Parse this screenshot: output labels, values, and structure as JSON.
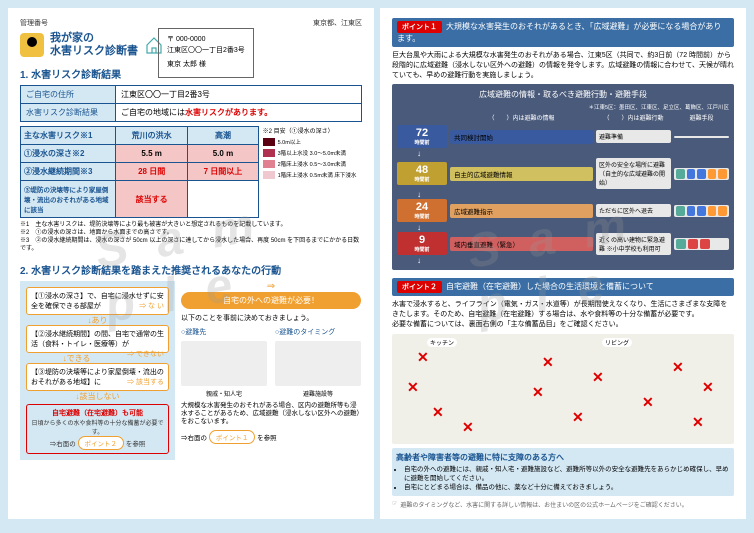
{
  "header": {
    "left": "管理番号",
    "right": "東京都、江東区"
  },
  "title": {
    "line1": "我が家の",
    "line2": "水害リスク診断書"
  },
  "address_box": {
    "zip": "〒 000-0000",
    "addr": "江東区〇〇一丁目2番3号",
    "name": "東京 太郎 様"
  },
  "sec1": {
    "title": "1. 水害リスク診断結果",
    "rows": [
      {
        "label": "ご自宅の住所",
        "value": "江東区〇〇一丁目2番3号"
      },
      {
        "label": "水害リスク診断結果",
        "prefix": "ご自宅の地域には",
        "risk": "水害リスクがあります。"
      }
    ],
    "risk_table": {
      "main_label": "主な水害リスク※1",
      "cols": [
        "荒川の洪水",
        "高潮"
      ],
      "rows": [
        {
          "label": "①浸水の深さ※2",
          "vals": [
            "5.5 m",
            "5.0 m"
          ],
          "pink": true
        },
        {
          "label": "②浸水継続期間※3",
          "vals": [
            "28 日間",
            "7 日間以上"
          ],
          "pink": true,
          "red": true
        },
        {
          "label": "③堤防の決壊等により家屋倒壊・流出のおそれがある地域に該当",
          "vals": [
            "該当する",
            ""
          ],
          "pink": true,
          "red": true,
          "span": true
        }
      ],
      "depth_legend": {
        "title": "※2 目安（①浸水の深さ）",
        "items": [
          {
            "c": "#5a0010",
            "t": "5.0m以上"
          },
          {
            "c": "#b03050",
            "t": "3階以上水没 3.0～5.0m未満"
          },
          {
            "c": "#e08090",
            "t": "2階床上浸水 0.5～3.0m未満"
          },
          {
            "c": "#f0c8d0",
            "t": "1階床上浸水 0.5m未満 床下浸水"
          }
        ]
      }
    },
    "notes": [
      "※1　主な水害リスクは、堤防決壊等により最も被害が大きいと想定されるものを記載しています。",
      "※2　①の浸水の深さは、地面から水面までの高さです。",
      "※3　②の浸水継続期間は、浸水の深さが 50cm 以上の深さに達してから浸水した場合、再度 50cm を下回るまでにかかる日数です。"
    ]
  },
  "sec2": {
    "title": "2. 水害リスク診断結果を踏まえた推奨されるあなたの行動",
    "underline": "推奨されるあなたの行動",
    "flow": [
      {
        "t": "【①浸水の深さ】で、自宅に浸水せずに安全を確保できる部屋が",
        "s": "な い"
      },
      {
        "a": "↓あり"
      },
      {
        "t": "【②浸水継続期間】の間、自宅で通常の生活（食料・トイレ・医療等）が",
        "s": "できない"
      },
      {
        "a": "↓できる"
      },
      {
        "t": "【③堤防の決壊等により家屋倒壊・流出のおそれがある地域】に",
        "s": "該当する"
      },
      {
        "a": "↓該当しない"
      }
    ],
    "flow_result": {
      "t1": "自宅避難（在宅避難）も可能",
      "t2": "日頃から多くの水や食料等の十分な備蓄が必要です。",
      "arrow": "⇒右面の",
      "btn": "ポイント２",
      "suf": "を参照"
    },
    "right": {
      "pill": "自宅の外への避難が必要！",
      "intro": "以下のことを事前に決めておきましょう。",
      "sub": [
        {
          "h": "○避難先",
          "img": true
        },
        {
          "h": "○避難のタイミング",
          "img": true
        }
      ],
      "illus_cap": [
        "親戚・知人宅",
        "避難施設等"
      ],
      "note": "大規模な水害発生のおそれがある場合、区内の避難所等も浸水することがあるため、広域避難（浸水しない区外への避難）をおこないます。",
      "arrow": "⇒右面の",
      "btn": "ポイント１",
      "suf": "を参照"
    }
  },
  "page2": {
    "point1": {
      "tag": "ポイント１",
      "title": "大規模な水害発生のおそれがあるとき、「広域避難」が必要になる場合があります。",
      "body": "巨大台風や大雨による大規模な水害発生のおそれがある場合、江東5区（共同で、約3日前（72 時間前）から段階的に広域避難（浸水しない区外への避難）の情報を発令します。広域避難の情報に合わせて、天候が晴れていても、早めの避難行動を実施しましょう。",
      "evac_title": "広域避難の情報・取るべき避難行動・避難手段",
      "legend": "＊江東5区：墨田区、江東区、足立区、葛飾区、江戸川区",
      "col_headers": [
        "（　　）内は避難の情報",
        "（　　）内は避難行動",
        "避難手段"
      ],
      "rows": [
        {
          "time": "72",
          "unit": "時間前",
          "tc": "#3a5aa0",
          "action": "共同検討開始",
          "ac": "#3a5aa0",
          "dest": "避難準備",
          "icons": []
        },
        {
          "time": "48",
          "unit": "時間前",
          "tc": "#c0a030",
          "action": "自主的広域避難情報",
          "ac": "#d0c060",
          "dest": "区外の安全な場所に避難（自主的な広域避難の開始）",
          "icons": [
            "g",
            "b",
            "b",
            "o",
            "o"
          ]
        },
        {
          "time": "24",
          "unit": "時間前",
          "tc": "#d07030",
          "action": "広域避難指示",
          "ac": "#e0a060",
          "dest": "ただちに区外へ退去",
          "icons": [
            "g",
            "b",
            "b",
            "o",
            "o"
          ]
        },
        {
          "time": "9",
          "unit": "時間前",
          "tc": "#c03030",
          "action": "域内垂直避難（緊急）",
          "ac": "#d06060",
          "dest": "近くの高い建物に緊急避難 ※小中学校も利用可",
          "icons": [
            "g",
            "r",
            "r"
          ]
        }
      ]
    },
    "point2": {
      "tag": "ポイント２",
      "title": "自宅避難（在宅避難）した場合の生活環境と備蓄について",
      "body1": "水害で浸水すると、ライフライン（電気・ガス・水道等）が長期間使えなくなり、生活にさまざまな支障をきたします。そのため、自宅避難（在宅避難）する場合は、水や食料等の十分な備蓄が必要です。",
      "body2": "必要な備蓄については、裏面右側の「主な備蓄品目」をご確認ください。",
      "room_labels": [
        "キッチン",
        "リビング"
      ],
      "x_positions": [
        {
          "t": 15,
          "l": 25
        },
        {
          "t": 45,
          "l": 15
        },
        {
          "t": 70,
          "l": 40
        },
        {
          "t": 85,
          "l": 70
        },
        {
          "t": 20,
          "l": 150
        },
        {
          "t": 50,
          "l": 140
        },
        {
          "t": 35,
          "l": 200
        },
        {
          "t": 75,
          "l": 180
        },
        {
          "t": 60,
          "l": 250
        },
        {
          "t": 25,
          "l": 280
        },
        {
          "t": 80,
          "l": 300
        },
        {
          "t": 45,
          "l": 310
        }
      ]
    },
    "elder": {
      "title": "高齢者や障害者等の避難に特に支障のある方へ",
      "items": [
        "自宅の外への避難には、親戚・知人宅・避難施設など、避難所等以外の安全な避難先をあらかじめ確保し、早めに避難を開始してください。",
        "自宅にとどまる場合は、備品の他に、薬など十分に備えておきましょう。"
      ]
    },
    "footer": "避難のタイミングなど、水害に関する詳しい情報は、お住まいの区の公式ホームページをご確認ください。"
  }
}
